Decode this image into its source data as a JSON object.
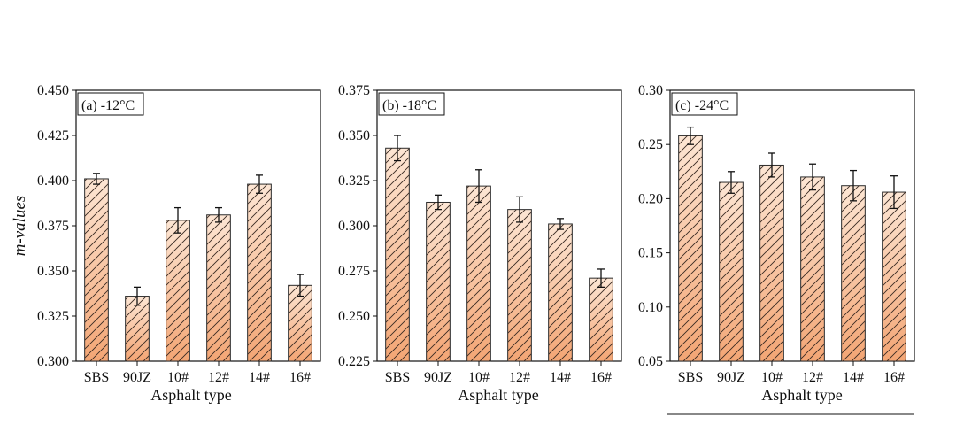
{
  "chart_data": [
    {
      "type": "bar",
      "panel_label": "(a) -12°C",
      "categories": [
        "SBS",
        "90JZ",
        "10#",
        "12#",
        "14#",
        "16#"
      ],
      "values": [
        0.401,
        0.336,
        0.378,
        0.381,
        0.398,
        0.342
      ],
      "errors": [
        0.003,
        0.005,
        0.007,
        0.004,
        0.005,
        0.006
      ],
      "xlabel": "Asphalt type",
      "ylabel": "m-values",
      "ylim": [
        0.3,
        0.45
      ],
      "yticks": [
        "0.300",
        "0.325",
        "0.350",
        "0.375",
        "0.400",
        "0.425",
        "0.450"
      ]
    },
    {
      "type": "bar",
      "panel_label": "(b) -18°C",
      "categories": [
        "SBS",
        "90JZ",
        "10#",
        "12#",
        "14#",
        "16#"
      ],
      "values": [
        0.343,
        0.313,
        0.322,
        0.309,
        0.301,
        0.271
      ],
      "errors": [
        0.007,
        0.004,
        0.009,
        0.007,
        0.003,
        0.005
      ],
      "xlabel": "Asphalt type",
      "ylabel": "",
      "ylim": [
        0.225,
        0.375
      ],
      "yticks": [
        "0.225",
        "0.250",
        "0.275",
        "0.300",
        "0.325",
        "0.350",
        "0.375"
      ]
    },
    {
      "type": "bar",
      "panel_label": "(c) -24°C",
      "categories": [
        "SBS",
        "90JZ",
        "10#",
        "12#",
        "14#",
        "16#"
      ],
      "values": [
        0.258,
        0.215,
        0.231,
        0.22,
        0.212,
        0.206
      ],
      "errors": [
        0.008,
        0.01,
        0.011,
        0.012,
        0.014,
        0.015
      ],
      "xlabel": "Asphalt type",
      "ylabel": "",
      "ylim": [
        0.05,
        0.3
      ],
      "yticks": [
        "0.05",
        "0.10",
        "0.15",
        "0.20",
        "0.25",
        "0.30"
      ]
    }
  ],
  "colors": {
    "bar_top": "#fde6d4",
    "bar_bottom": "#f3a574",
    "bar_edge": "#2b2b2b",
    "hatch": "#3a2a22",
    "axis": "#111111"
  }
}
